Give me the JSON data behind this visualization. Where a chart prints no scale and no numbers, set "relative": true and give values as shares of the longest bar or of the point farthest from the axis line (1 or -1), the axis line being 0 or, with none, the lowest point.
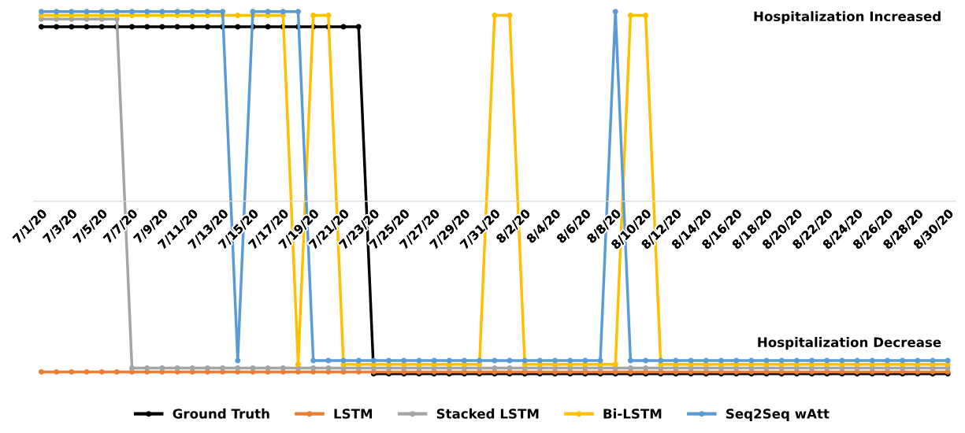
{
  "chart_data": {
    "type": "line",
    "relative": true,
    "marker": "circle",
    "grid": false,
    "legend": "bottom",
    "categories": [
      "7/1/20",
      null,
      "7/3/20",
      null,
      "7/5/20",
      null,
      "7/7/20",
      null,
      "7/9/20",
      null,
      "7/11/20",
      null,
      "7/13/20",
      null,
      "7/15/20",
      null,
      "7/17/20",
      null,
      "7/19/20",
      null,
      "7/21/20",
      null,
      "7/23/20",
      null,
      "7/25/20",
      null,
      "7/27/20",
      null,
      "7/29/20",
      null,
      "7/31/20",
      null,
      "8/2/20",
      null,
      "8/4/20",
      null,
      "8/6/20",
      null,
      "8/8/20",
      null,
      "8/10/20",
      null,
      "8/12/20",
      null,
      "8/14/20",
      null,
      "8/16/20",
      null,
      "8/18/20",
      null,
      "8/20/20",
      null,
      "8/22/20",
      null,
      "8/24/20",
      null,
      "8/26/20",
      null,
      "8/28/20",
      null,
      "8/30/20"
    ],
    "series": [
      {
        "name": "Ground Truth",
        "color": "#000000",
        "values": [
          0.92,
          0.92,
          0.92,
          0.92,
          0.92,
          0.92,
          0.92,
          0.92,
          0.92,
          0.92,
          0.92,
          0.92,
          0.92,
          0.92,
          0.92,
          0.92,
          0.92,
          0.92,
          0.92,
          0.92,
          0.92,
          0.92,
          -0.91,
          -0.91,
          -0.91,
          -0.91,
          -0.91,
          -0.91,
          -0.91,
          -0.91,
          -0.91,
          -0.91,
          -0.91,
          -0.91,
          -0.91,
          -0.91,
          -0.91,
          -0.91,
          -0.91,
          -0.91,
          -0.91,
          -0.91,
          -0.91,
          -0.91,
          -0.91,
          -0.91,
          -0.91,
          -0.91,
          -0.91,
          -0.91,
          -0.91,
          -0.91,
          -0.91,
          -0.91,
          -0.91,
          -0.91,
          -0.91,
          -0.91,
          -0.91,
          -0.91,
          -0.91
        ]
      },
      {
        "name": "LSTM",
        "color": "#ed7d31",
        "values": [
          -0.9,
          -0.9,
          -0.9,
          -0.9,
          -0.9,
          -0.9,
          -0.9,
          -0.9,
          -0.9,
          -0.9,
          -0.9,
          -0.9,
          -0.9,
          -0.9,
          -0.9,
          -0.9,
          -0.9,
          -0.9,
          -0.9,
          -0.9,
          -0.9,
          -0.9,
          -0.9,
          -0.9,
          -0.9,
          -0.9,
          -0.9,
          -0.9,
          -0.9,
          -0.9,
          -0.9,
          -0.9,
          -0.9,
          -0.9,
          -0.9,
          -0.9,
          -0.9,
          -0.9,
          -0.9,
          -0.9,
          -0.9,
          -0.9,
          -0.9,
          -0.9,
          -0.9,
          -0.9,
          -0.9,
          -0.9,
          -0.9,
          -0.9,
          -0.9,
          -0.9,
          -0.9,
          -0.9,
          -0.9,
          -0.9,
          -0.9,
          -0.9,
          -0.9,
          -0.9,
          -0.9
        ]
      },
      {
        "name": "Stacked LSTM",
        "color": "#a5a5a5",
        "values": [
          0.96,
          0.96,
          0.96,
          0.96,
          0.96,
          0.96,
          -0.88,
          -0.88,
          -0.88,
          -0.88,
          -0.88,
          -0.88,
          -0.88,
          -0.88,
          -0.88,
          -0.88,
          -0.88,
          -0.88,
          -0.88,
          -0.88,
          -0.88,
          -0.88,
          -0.88,
          -0.88,
          -0.88,
          -0.88,
          -0.88,
          -0.88,
          -0.88,
          -0.88,
          -0.88,
          -0.88,
          -0.88,
          -0.88,
          -0.88,
          -0.88,
          -0.88,
          -0.88,
          -0.88,
          -0.88,
          -0.88,
          -0.88,
          -0.88,
          -0.88,
          -0.88,
          -0.88,
          -0.88,
          -0.88,
          -0.88,
          -0.88,
          -0.88,
          -0.88,
          -0.88,
          -0.88,
          -0.88,
          -0.88,
          -0.88,
          -0.88,
          -0.88,
          -0.88,
          -0.88
        ]
      },
      {
        "name": "Bi-LSTM",
        "color": "#ffc000",
        "values": [
          0.98,
          0.98,
          0.98,
          0.98,
          0.98,
          0.98,
          0.98,
          0.98,
          0.98,
          0.98,
          0.98,
          0.98,
          0.98,
          0.98,
          0.98,
          0.98,
          0.98,
          -0.86,
          0.98,
          0.98,
          -0.86,
          -0.86,
          -0.86,
          -0.86,
          -0.86,
          -0.86,
          -0.86,
          -0.86,
          -0.86,
          -0.86,
          0.98,
          0.98,
          -0.86,
          -0.86,
          -0.86,
          -0.86,
          -0.86,
          -0.86,
          -0.86,
          0.98,
          0.98,
          -0.86,
          -0.86,
          -0.86,
          -0.86,
          -0.86,
          -0.86,
          -0.86,
          -0.86,
          -0.86,
          -0.86,
          -0.86,
          -0.86,
          -0.86,
          -0.86,
          -0.86,
          -0.86,
          -0.86,
          -0.86,
          -0.86,
          -0.86
        ]
      },
      {
        "name": "Seq2Seq wAtt",
        "color": "#5b9bd5",
        "values": [
          1,
          1,
          1,
          1,
          1,
          1,
          1,
          1,
          1,
          1,
          1,
          1,
          1,
          -0.84,
          1,
          1,
          1,
          1,
          -0.84,
          -0.84,
          -0.84,
          -0.84,
          -0.84,
          -0.84,
          -0.84,
          -0.84,
          -0.84,
          -0.84,
          -0.84,
          -0.84,
          -0.84,
          -0.84,
          -0.84,
          -0.84,
          -0.84,
          -0.84,
          -0.84,
          -0.84,
          1,
          -0.84,
          -0.84,
          -0.84,
          -0.84,
          -0.84,
          -0.84,
          -0.84,
          -0.84,
          -0.84,
          -0.84,
          -0.84,
          -0.84,
          -0.84,
          -0.84,
          -0.84,
          -0.84,
          -0.84,
          -0.84,
          -0.84,
          -0.84,
          -0.84,
          -0.84
        ]
      }
    ],
    "annotations": [
      "Hospitalization Increased",
      "Hospitalization Decrease"
    ]
  }
}
